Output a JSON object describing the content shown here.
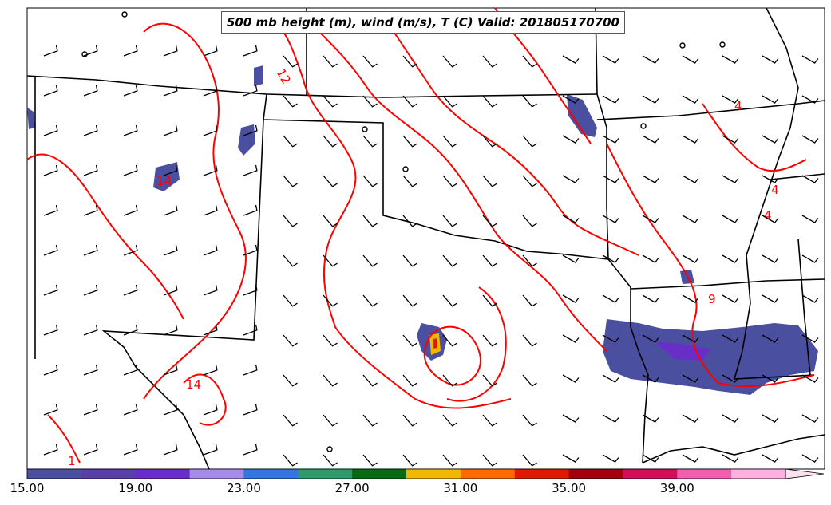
{
  "title": "500 mb height (m), wind (m/s), T (C) Valid: 201805170700",
  "contour_labels": [
    "12",
    "14",
    "14",
    "4",
    "4",
    "4",
    "9",
    "1"
  ],
  "colorbar": {
    "ticks": [
      "15.00",
      "19.00",
      "23.00",
      "27.00",
      "31.00",
      "35.00",
      "39.00"
    ],
    "colors": [
      "#4b4fa0",
      "#5a3fa8",
      "#6a2ec8",
      "#a78be8",
      "#3575e0",
      "#2f9a6a",
      "#0a6a12",
      "#f0b800",
      "#ff6a00",
      "#e01a00",
      "#a00010",
      "#d0105a",
      "#f060b0",
      "#ffb0e0"
    ]
  },
  "colors": {
    "temperature_contour": "#ff0000",
    "borders": "#000000",
    "precip_low": "#4b4fa0",
    "precip_mid": "#6a2ec8"
  }
}
